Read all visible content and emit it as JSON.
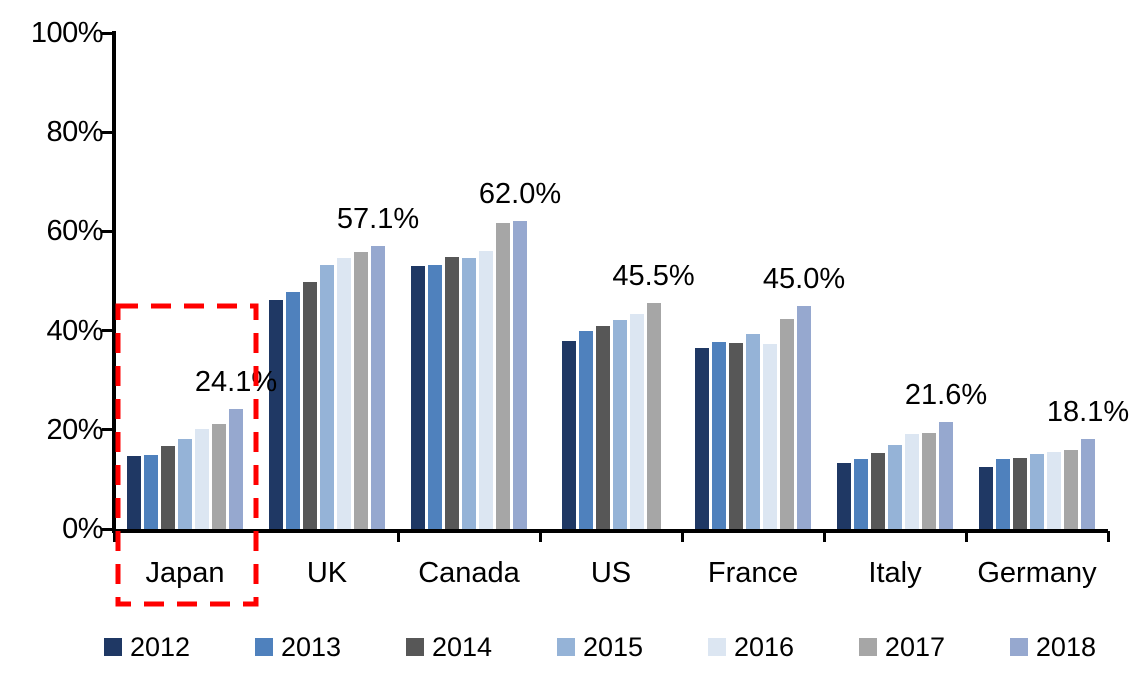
{
  "chart_data": {
    "type": "bar",
    "title": "",
    "xlabel": "",
    "ylabel": "",
    "ylim": [
      0,
      100
    ],
    "grid": false,
    "legend_position": "bottom",
    "y_tick_labels": [
      "100%",
      "80%",
      "60%",
      "40%",
      "20%",
      "0%"
    ],
    "y_tick_values": [
      100,
      80,
      60,
      40,
      20,
      0
    ],
    "categories": [
      "Japan",
      "UK",
      "Canada",
      "US",
      "France",
      "Italy",
      "Germany"
    ],
    "series": [
      {
        "name": "2012",
        "color": "#1F3864",
        "values": [
          14.8,
          46.2,
          53.0,
          38.0,
          36.5,
          13.4,
          12.5
        ]
      },
      {
        "name": "2013",
        "color": "#4F81BD",
        "values": [
          15.0,
          47.8,
          53.3,
          40.0,
          37.7,
          14.2,
          14.1
        ]
      },
      {
        "name": "2014",
        "color": "#575757",
        "values": [
          16.7,
          49.8,
          54.8,
          41.0,
          37.6,
          15.4,
          14.4
        ]
      },
      {
        "name": "2015",
        "color": "#95B3D7",
        "values": [
          18.2,
          53.2,
          54.6,
          42.1,
          39.4,
          17.0,
          15.1
        ]
      },
      {
        "name": "2016",
        "color": "#DCE6F2",
        "values": [
          20.1,
          54.6,
          56.1,
          43.4,
          37.4,
          19.2,
          15.5
        ]
      },
      {
        "name": "2017",
        "color": "#A6A6A6",
        "values": [
          21.1,
          55.8,
          61.6,
          45.5,
          42.3,
          19.3,
          15.9
        ]
      },
      {
        "name": "2018",
        "color": "#96A8CF",
        "values": [
          24.1,
          57.1,
          62.0,
          null,
          45.0,
          21.6,
          18.1
        ]
      }
    ],
    "data_labels": [
      "24.1%",
      "57.1%",
      "62.0%",
      "45.5%",
      "45.0%",
      "21.6%",
      "18.1%"
    ],
    "highlight": {
      "target": "Japan",
      "style": "dashed-box",
      "color": "#FF0000"
    },
    "axis_color": "#000000"
  },
  "legend": {
    "items": [
      {
        "label": "2012",
        "color": "#1F3864"
      },
      {
        "label": "2013",
        "color": "#4F81BD"
      },
      {
        "label": "2014",
        "color": "#575757"
      },
      {
        "label": "2015",
        "color": "#95B3D7"
      },
      {
        "label": "2016",
        "color": "#DCE6F2"
      },
      {
        "label": "2017",
        "color": "#A6A6A6"
      },
      {
        "label": "2018",
        "color": "#96A8CF"
      }
    ]
  }
}
